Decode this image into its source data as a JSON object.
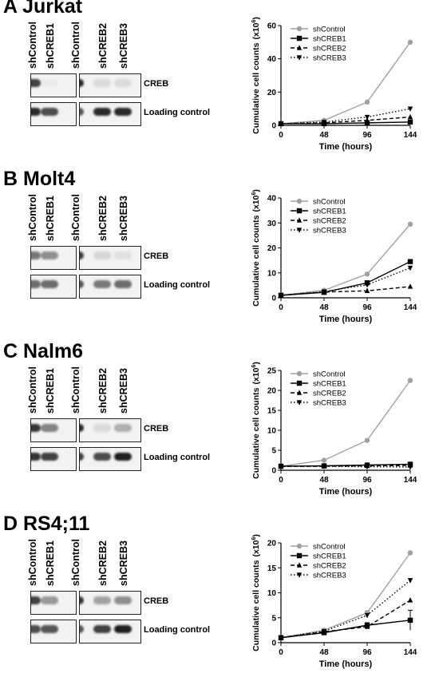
{
  "lane_labels": [
    "shControl",
    "shCREB1",
    "shControl",
    "shCREB2",
    "shCREB3"
  ],
  "band_labels": {
    "creb": "CREB",
    "loading": "Loading control"
  },
  "panels": [
    {
      "title": "A Jurkat",
      "creb_intensity": [
        0.8,
        0.0,
        0.9,
        0.1,
        0.1
      ],
      "loading_intensity": [
        0.9,
        0.75,
        0.7,
        0.9,
        0.9
      ]
    },
    {
      "title": "B Molt4",
      "creb_intensity": [
        0.55,
        0.45,
        0.8,
        0.12,
        0.08
      ],
      "loading_intensity": [
        0.6,
        0.6,
        0.7,
        0.55,
        0.6
      ]
    },
    {
      "title": "C Nalm6",
      "creb_intensity": [
        0.85,
        0.5,
        0.9,
        0.1,
        0.3
      ],
      "loading_intensity": [
        0.85,
        0.8,
        0.8,
        0.75,
        0.95
      ]
    },
    {
      "title": "D RS4;11",
      "creb_intensity": [
        0.8,
        0.4,
        0.85,
        0.35,
        0.45
      ],
      "loading_intensity": [
        0.75,
        0.7,
        0.7,
        0.8,
        0.95
      ]
    }
  ],
  "chart_data": [
    {
      "type": "line",
      "xlabel": "Time (hours)",
      "ylabel": "Cumulative cell counts",
      "yunit": "(x10",
      "yexp": "6",
      "yunit_close": ")",
      "x": [
        0,
        48,
        96,
        144
      ],
      "xticks": [
        "0",
        "48",
        "96",
        "144"
      ],
      "ylim": [
        0,
        60
      ],
      "yticks": [
        "0",
        "20",
        "40",
        "60"
      ],
      "ytick_values": [
        0,
        20,
        40,
        60
      ],
      "series": [
        {
          "name": "shControl",
          "values": [
            1,
            3,
            14,
            50
          ],
          "color": "#a0a0a0",
          "dash": "none",
          "marker": "circle"
        },
        {
          "name": "shCREB1",
          "values": [
            1,
            1,
            1.5,
            2
          ],
          "color": "#000000",
          "dash": "none",
          "marker": "square"
        },
        {
          "name": "shCREB2",
          "values": [
            1,
            1.5,
            3,
            5
          ],
          "color": "#000000",
          "dash": "dash",
          "marker": "triangle-up"
        },
        {
          "name": "shCREB3",
          "values": [
            1,
            2,
            5,
            10
          ],
          "color": "#000000",
          "dash": "dot",
          "marker": "triangle-down"
        }
      ]
    },
    {
      "type": "line",
      "xlabel": "Time (hours)",
      "ylabel": "Cumulative cell counts",
      "yunit": "(x10",
      "yexp": "6",
      "yunit_close": ")",
      "x": [
        0,
        48,
        96,
        144
      ],
      "xticks": [
        "0",
        "48",
        "96",
        "144"
      ],
      "ylim": [
        0,
        40
      ],
      "yticks": [
        "0",
        "10",
        "20",
        "30",
        "40"
      ],
      "ytick_values": [
        0,
        10,
        20,
        30,
        40
      ],
      "series": [
        {
          "name": "shControl",
          "values": [
            1,
            3,
            9.5,
            29.5
          ],
          "color": "#a0a0a0",
          "dash": "none",
          "marker": "circle"
        },
        {
          "name": "shCREB1",
          "values": [
            1,
            2.2,
            6,
            14.5
          ],
          "color": "#000000",
          "dash": "none",
          "marker": "square"
        },
        {
          "name": "shCREB2",
          "values": [
            1,
            2.3,
            2.8,
            4.5
          ],
          "color": "#000000",
          "dash": "dash",
          "marker": "triangle-up"
        },
        {
          "name": "shCREB3",
          "values": [
            1,
            2.5,
            5.2,
            12
          ],
          "color": "#000000",
          "dash": "dot",
          "marker": "triangle-down"
        }
      ]
    },
    {
      "type": "line",
      "xlabel": "Time (hours)",
      "ylabel": "Cumulative cell counts",
      "yunit": "(x10",
      "yexp": "6",
      "yunit_close": ")",
      "x": [
        0,
        48,
        96,
        144
      ],
      "xticks": [
        "0",
        "48",
        "96",
        "144"
      ],
      "ylim": [
        0,
        25
      ],
      "yticks": [
        "0",
        "5",
        "10",
        "15",
        "20",
        "25"
      ],
      "ytick_values": [
        0,
        5,
        10,
        15,
        20,
        25
      ],
      "series": [
        {
          "name": "shControl",
          "values": [
            1,
            2.5,
            7.5,
            22.5
          ],
          "color": "#a0a0a0",
          "dash": "none",
          "marker": "circle"
        },
        {
          "name": "shCREB1",
          "values": [
            1,
            1.1,
            1.3,
            1.5
          ],
          "color": "#000000",
          "dash": "none",
          "marker": "square"
        },
        {
          "name": "shCREB2",
          "values": [
            1,
            1.0,
            1.1,
            1.2
          ],
          "color": "#000000",
          "dash": "dash",
          "marker": "triangle-up"
        },
        {
          "name": "shCREB3",
          "values": [
            1,
            1.0,
            0.9,
            0.8
          ],
          "color": "#000000",
          "dash": "dot",
          "marker": "triangle-down"
        }
      ]
    },
    {
      "type": "line",
      "xlabel": "Time (hours)",
      "ylabel": "Cumulative cell counts",
      "yunit": "(x10",
      "yexp": "6",
      "yunit_close": ")",
      "x": [
        0,
        48,
        96,
        144
      ],
      "xticks": [
        "0",
        "48",
        "96",
        "144"
      ],
      "ylim": [
        0,
        20
      ],
      "yticks": [
        "0",
        "5",
        "10",
        "15",
        "20"
      ],
      "ytick_values": [
        0,
        5,
        10,
        15,
        20
      ],
      "series": [
        {
          "name": "shControl",
          "values": [
            1,
            2.5,
            6,
            18
          ],
          "color": "#a0a0a0",
          "dash": "none",
          "marker": "circle",
          "err": [
            0,
            0.3,
            0.4,
            0
          ]
        },
        {
          "name": "shCREB1",
          "values": [
            1,
            2,
            3.5,
            4.5
          ],
          "color": "#000000",
          "dash": "none",
          "marker": "square",
          "err": [
            0,
            0.2,
            0.5,
            2
          ]
        },
        {
          "name": "shCREB2",
          "values": [
            1,
            2.2,
            3.2,
            8.5
          ],
          "color": "#000000",
          "dash": "dash",
          "marker": "triangle-up",
          "err": [
            0,
            0,
            0,
            0
          ]
        },
        {
          "name": "shCREB3",
          "values": [
            1,
            2.3,
            5.5,
            12.5
          ],
          "color": "#000000",
          "dash": "dot",
          "marker": "triangle-down",
          "err": [
            0,
            0,
            0,
            0
          ]
        }
      ]
    }
  ]
}
